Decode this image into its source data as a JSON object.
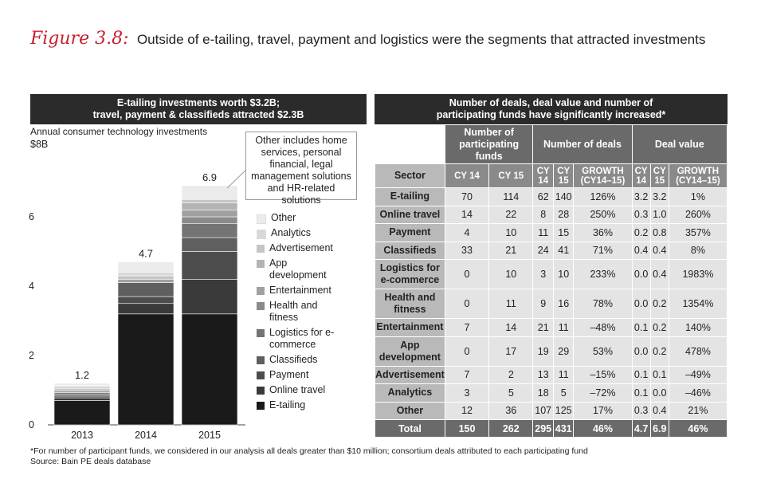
{
  "figure": {
    "label": "Figure 3.8:",
    "title": "Outside of e-tailing, travel, payment and logistics were the segments that attracted investments"
  },
  "left_panel": {
    "header_line1": "E-tailing investments worth $3.2B;",
    "header_line2": "travel, payment & classifieds attracted $2.3B",
    "subtitle": "Annual consumer technology investments",
    "callout": "Other includes home services, personal financial, legal management solutions and HR-related solutions"
  },
  "chart_data": {
    "type": "bar",
    "stacked": true,
    "categories": [
      "2013",
      "2014",
      "2015"
    ],
    "totals": [
      1.2,
      4.7,
      6.9
    ],
    "ylim": [
      0,
      8
    ],
    "yticks": [
      0,
      2,
      4,
      6
    ],
    "top_tick_label": "$8B",
    "series": [
      {
        "name": "E-tailing",
        "color": "#1a1a1a",
        "values": [
          0.7,
          3.2,
          3.2
        ]
      },
      {
        "name": "Online travel",
        "color": "#3a3a3a",
        "values": [
          0.08,
          0.3,
          1.0
        ]
      },
      {
        "name": "Payment",
        "color": "#4d4d4d",
        "values": [
          0.05,
          0.2,
          0.8
        ]
      },
      {
        "name": "Classifieds",
        "color": "#5f5f5f",
        "values": [
          0.06,
          0.4,
          0.4
        ]
      },
      {
        "name": "Logistics for e-commerce",
        "color": "#747474",
        "values": [
          0.04,
          0.0,
          0.4
        ]
      },
      {
        "name": "Health and fitness",
        "color": "#8a8a8a",
        "values": [
          0.04,
          0.0,
          0.2
        ]
      },
      {
        "name": "Entertainment",
        "color": "#a0a0a0",
        "values": [
          0.04,
          0.1,
          0.2
        ]
      },
      {
        "name": "App development",
        "color": "#b4b4b4",
        "values": [
          0.04,
          0.0,
          0.2
        ]
      },
      {
        "name": "Advertisement",
        "color": "#c6c6c6",
        "values": [
          0.04,
          0.1,
          0.1
        ]
      },
      {
        "name": "Analytics",
        "color": "#d8d8d8",
        "values": [
          0.04,
          0.1,
          0.0
        ]
      },
      {
        "name": "Other",
        "color": "#ebebeb",
        "values": [
          0.07,
          0.3,
          0.4
        ]
      }
    ]
  },
  "legend": [
    {
      "label": "Other",
      "color": "#ebebeb"
    },
    {
      "label": "Analytics",
      "color": "#d8d8d8"
    },
    {
      "label": "Advertisement",
      "color": "#c6c6c6"
    },
    {
      "label": "App development",
      "color": "#b4b4b4"
    },
    {
      "label": "Entertainment",
      "color": "#a0a0a0"
    },
    {
      "label": "Health and fitness",
      "color": "#8a8a8a"
    },
    {
      "label": "Logistics for e-commerce",
      "color": "#747474"
    },
    {
      "label": "Classifieds",
      "color": "#5f5f5f"
    },
    {
      "label": "Payment",
      "color": "#4d4d4d"
    },
    {
      "label": "Online travel",
      "color": "#3a3a3a"
    },
    {
      "label": "E-tailing",
      "color": "#1a1a1a"
    }
  ],
  "right_panel": {
    "header_line1": "Number of deals, deal value and number of",
    "header_line2": "participating funds have significantly increased*",
    "groups": [
      "Number of participating funds",
      "Number of deals",
      "Deal value"
    ],
    "columns": [
      "Sector",
      "CY 14",
      "CY 15",
      "CY 14",
      "CY 15",
      "GROWTH (CY14–15)",
      "CY 14",
      "CY 15",
      "GROWTH (CY14–15)"
    ],
    "rows": [
      [
        "E-tailing",
        "70",
        "114",
        "62",
        "140",
        "126%",
        "3.2",
        "3.2",
        "1%"
      ],
      [
        "Online travel",
        "14",
        "22",
        "8",
        "28",
        "250%",
        "0.3",
        "1.0",
        "260%"
      ],
      [
        "Payment",
        "4",
        "10",
        "11",
        "15",
        "36%",
        "0.2",
        "0.8",
        "357%"
      ],
      [
        "Classifieds",
        "33",
        "21",
        "24",
        "41",
        "71%",
        "0.4",
        "0.4",
        "8%"
      ],
      [
        "Logistics for e-commerce",
        "0",
        "10",
        "3",
        "10",
        "233%",
        "0.0",
        "0.4",
        "1983%"
      ],
      [
        "Health and fitness",
        "0",
        "11",
        "9",
        "16",
        "78%",
        "0.0",
        "0.2",
        "1354%"
      ],
      [
        "Entertainment",
        "7",
        "14",
        "21",
        "11",
        "–48%",
        "0.1",
        "0.2",
        "140%"
      ],
      [
        "App development",
        "0",
        "17",
        "19",
        "29",
        "53%",
        "0.0",
        "0.2",
        "478%"
      ],
      [
        "Advertisement",
        "7",
        "2",
        "13",
        "11",
        "–15%",
        "0.1",
        "0.1",
        "–49%"
      ],
      [
        "Analytics",
        "3",
        "5",
        "18",
        "5",
        "–72%",
        "0.1",
        "0.0",
        "–46%"
      ],
      [
        "Other",
        "12",
        "36",
        "107",
        "125",
        "17%",
        "0.3",
        "0.4",
        "21%"
      ]
    ],
    "total": [
      "Total",
      "150",
      "262",
      "295",
      "431",
      "46%",
      "4.7",
      "6.9",
      "46%"
    ]
  },
  "footnote": {
    "line1": "*For number of participant funds, we considered in our analysis all deals greater than $10 million; consortium deals attributed to each participating fund",
    "line2": "Source: Bain PE deals database"
  }
}
